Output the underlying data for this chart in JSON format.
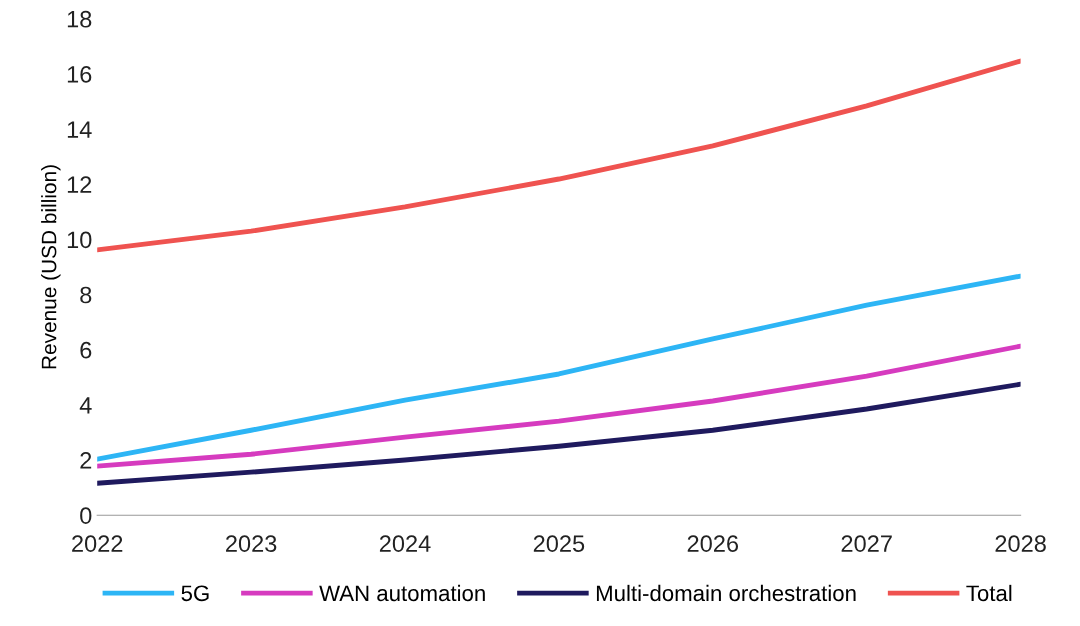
{
  "chart_data": {
    "type": "line",
    "ylabel": "Revenue (USD billion)",
    "categories": [
      "2022",
      "2023",
      "2024",
      "2025",
      "2026",
      "2027",
      "2028"
    ],
    "series": [
      {
        "name": "5G",
        "color": "#2db5f5",
        "values": [
          2.03,
          3.08,
          4.17,
          5.12,
          6.39,
          7.62,
          8.67
        ]
      },
      {
        "name": "WAN automation",
        "color": "#d63bbf",
        "values": [
          1.78,
          2.21,
          2.83,
          3.41,
          4.14,
          5.04,
          6.13
        ]
      },
      {
        "name": "Multi-domain orchestration",
        "color": "#1f1a5e",
        "values": [
          1.16,
          1.56,
          2.0,
          2.5,
          3.08,
          3.85,
          4.75
        ]
      },
      {
        "name": "Total",
        "color": "#ef5350",
        "values": [
          9.62,
          10.3,
          11.18,
          12.19,
          13.39,
          14.84,
          16.47
        ]
      }
    ],
    "ylim": [
      0,
      18
    ],
    "yticks": [
      0,
      2,
      4,
      6,
      8,
      10,
      12,
      14,
      16,
      18
    ],
    "grid": false,
    "legend": "bottom",
    "marker": "none",
    "line_style": "solid"
  }
}
